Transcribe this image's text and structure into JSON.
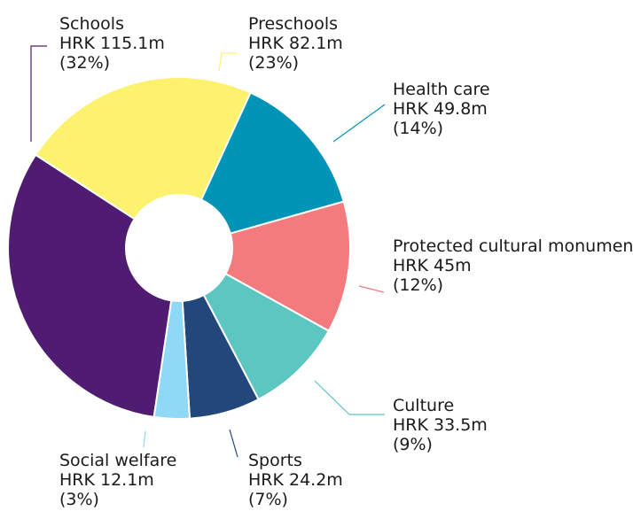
{
  "chart_data": {
    "type": "pie",
    "style": "donut",
    "unit": "HRK m",
    "slices": [
      {
        "label": "Preschools",
        "value": 82.1,
        "value_label": "HRK 82.1m",
        "percent_label": "(23%)",
        "color": "#fdf26d"
      },
      {
        "label": "Health care",
        "value": 49.8,
        "value_label": "HRK 49.8m",
        "percent_label": "(14%)",
        "color": "#0094b6"
      },
      {
        "label": "Protected cultural monuments",
        "value": 45,
        "value_label": "HRK 45m",
        "percent_label": "(12%)",
        "color": "#f37a7d"
      },
      {
        "label": "Culture",
        "value": 33.5,
        "value_label": "HRK 33.5m",
        "percent_label": "(9%)",
        "color": "#5cc6c0"
      },
      {
        "label": "Sports",
        "value": 24.2,
        "value_label": "HRK 24.2m",
        "percent_label": "(7%)",
        "color": "#22477b"
      },
      {
        "label": "Social welfare",
        "value": 12.1,
        "value_label": "HRK 12.1m",
        "percent_label": "(3%)",
        "color": "#8fd9f7"
      },
      {
        "label": "Schools",
        "value": 115.1,
        "value_label": "HRK 115.1m",
        "percent_label": "(32%)",
        "color": "#501c71"
      }
    ]
  }
}
